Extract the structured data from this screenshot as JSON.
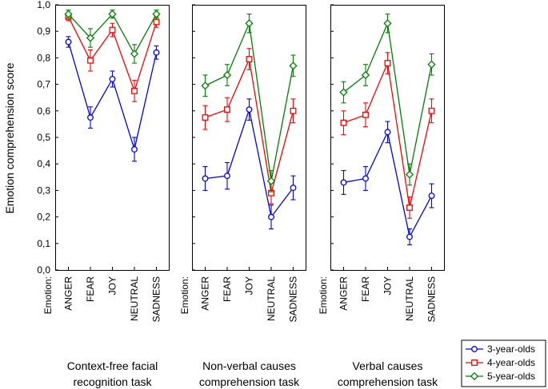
{
  "chart_data": {
    "type": "line",
    "ylabel": "Emotion comprehension score",
    "ylim": [
      0,
      1
    ],
    "y_ticks": [
      "0,0",
      "0,1",
      "0,2",
      "0,3",
      "0,4",
      "0,5",
      "0,6",
      "0,7",
      "0,8",
      "0,9",
      "1,0"
    ],
    "x_axis_title": "Emotion:",
    "categories": [
      "ANGER",
      "FEAR",
      "JOY",
      "NEUTRAL",
      "SADNESS"
    ],
    "grid": false,
    "legend_position": "bottom-right",
    "panels": [
      {
        "title_lines": [
          "Context-free facial",
          "recognition task"
        ],
        "series": [
          {
            "name": "3-year-olds",
            "color": "#0000ff",
            "marker": "circle",
            "values": [
              0.86,
              0.575,
              0.72,
              0.455,
              0.82
            ],
            "errors": [
              0.02,
              0.04,
              0.03,
              0.045,
              0.025
            ]
          },
          {
            "name": "4-year-olds",
            "color": "#ff0000",
            "marker": "square",
            "values": [
              0.955,
              0.79,
              0.905,
              0.675,
              0.935
            ],
            "errors": [
              0.015,
              0.04,
              0.025,
              0.04,
              0.02
            ]
          },
          {
            "name": "5-year-olds",
            "color": "#008000",
            "marker": "diamond",
            "values": [
              0.965,
              0.875,
              0.965,
              0.815,
              0.965
            ],
            "errors": [
              0.015,
              0.035,
              0.015,
              0.035,
              0.015
            ]
          }
        ]
      },
      {
        "title_lines": [
          "Non-verbal causes",
          "comprehension task"
        ],
        "series": [
          {
            "name": "3-year-olds",
            "color": "#0000ff",
            "marker": "circle",
            "values": [
              0.345,
              0.355,
              0.605,
              0.2,
              0.31
            ],
            "errors": [
              0.045,
              0.05,
              0.04,
              0.045,
              0.045
            ]
          },
          {
            "name": "4-year-olds",
            "color": "#ff0000",
            "marker": "square",
            "values": [
              0.575,
              0.605,
              0.795,
              0.29,
              0.6
            ],
            "errors": [
              0.045,
              0.045,
              0.04,
              0.04,
              0.045
            ]
          },
          {
            "name": "5-year-olds",
            "color": "#008000",
            "marker": "diamond",
            "values": [
              0.695,
              0.735,
              0.93,
              0.335,
              0.77
            ],
            "errors": [
              0.04,
              0.04,
              0.035,
              0.04,
              0.04
            ]
          }
        ]
      },
      {
        "title_lines": [
          "Verbal causes",
          "comprehension task"
        ],
        "series": [
          {
            "name": "3-year-olds",
            "color": "#0000ff",
            "marker": "circle",
            "values": [
              0.33,
              0.345,
              0.52,
              0.125,
              0.28
            ],
            "errors": [
              0.045,
              0.045,
              0.04,
              0.03,
              0.045
            ]
          },
          {
            "name": "4-year-olds",
            "color": "#ff0000",
            "marker": "square",
            "values": [
              0.555,
              0.585,
              0.78,
              0.235,
              0.6
            ],
            "errors": [
              0.045,
              0.045,
              0.04,
              0.04,
              0.045
            ]
          },
          {
            "name": "5-year-olds",
            "color": "#008000",
            "marker": "diamond",
            "values": [
              0.67,
              0.735,
              0.93,
              0.36,
              0.775
            ],
            "errors": [
              0.04,
              0.04,
              0.035,
              0.04,
              0.04
            ]
          }
        ]
      }
    ],
    "legend": [
      {
        "label": "3-year-olds",
        "color": "#0000ff",
        "marker": "circle"
      },
      {
        "label": "4-year-olds",
        "color": "#ff0000",
        "marker": "square"
      },
      {
        "label": "5-year-olds",
        "color": "#008000",
        "marker": "diamond"
      }
    ]
  }
}
